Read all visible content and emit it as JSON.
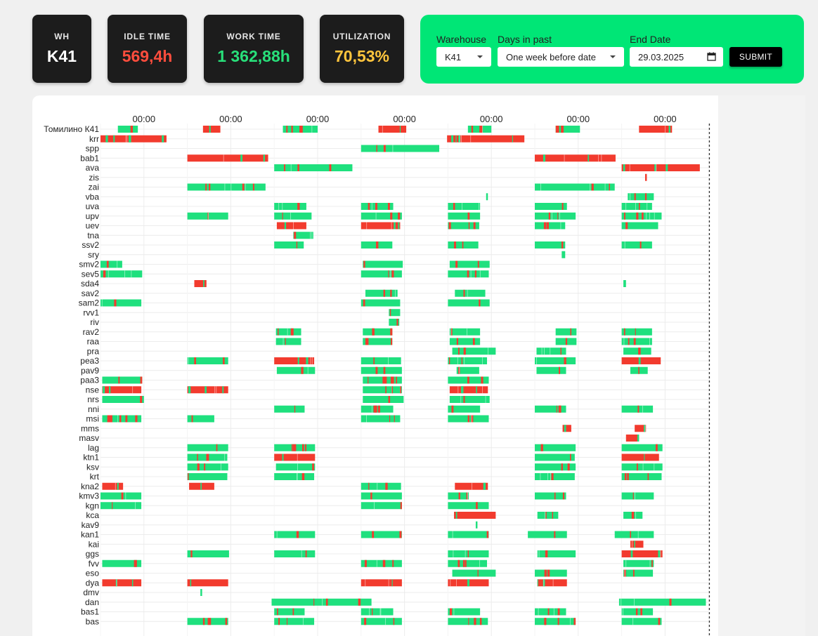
{
  "stats": {
    "wh": {
      "label": "WH",
      "value": "K41",
      "color": "#ffffff"
    },
    "idle": {
      "label": "IDLE TIME",
      "value": "569,4h",
      "color": "#ff4d3d"
    },
    "work": {
      "label": "WORK TIME",
      "value": "1 362,88h",
      "color": "#28e07a"
    },
    "util": {
      "label": "UTILIZATION",
      "value": "70,53%",
      "color": "#ffc53d"
    }
  },
  "filters": {
    "warehouse_label": "Warehouse",
    "warehouse_value": "K41",
    "days_label": "Days in past",
    "days_value": "One week before date",
    "end_date_label": "End Date",
    "end_date_value": "29.03.2025",
    "submit_label": "SUBMIT",
    "panel_color": "#00e676"
  },
  "chart_data": {
    "type": "gantt",
    "x_tick_labels": [
      "00:00",
      "00:00",
      "00:00",
      "00:00",
      "00:00",
      "00:00",
      "00:00"
    ],
    "x_ticks_day": [
      0.5,
      1.5,
      2.5,
      3.5,
      4.5,
      5.5,
      6.5
    ],
    "x_range_days": [
      0,
      7
    ],
    "colors": {
      "work": "#1fe07e",
      "idle": "#f23b2e"
    },
    "rows": [
      {
        "name": "Томилино К41",
        "segs": [
          [
            0.2,
            0.43,
            "m"
          ],
          [
            1.18,
            1.38,
            "r"
          ],
          [
            2.1,
            2.5,
            "m"
          ],
          [
            3.2,
            3.52,
            "r"
          ],
          [
            4.23,
            4.5,
            "m"
          ],
          [
            5.24,
            5.52,
            "m"
          ],
          [
            6.2,
            6.58,
            "r"
          ]
        ]
      },
      {
        "name": "krr",
        "segs": [
          [
            0.0,
            0.76,
            "r"
          ],
          [
            3.99,
            4.88,
            "r"
          ]
        ]
      },
      {
        "name": "spp",
        "segs": [
          [
            3.0,
            3.9,
            "g"
          ]
        ]
      },
      {
        "name": "bab1",
        "segs": [
          [
            1.0,
            1.93,
            "r"
          ],
          [
            5.0,
            5.93,
            "r"
          ]
        ]
      },
      {
        "name": "ava",
        "segs": [
          [
            2.0,
            2.9,
            "g"
          ],
          [
            6.0,
            6.9,
            "r"
          ]
        ]
      },
      {
        "name": "zis",
        "segs": [
          [
            6.27,
            6.29,
            "r"
          ]
        ]
      },
      {
        "name": "zai",
        "segs": [
          [
            1.0,
            1.9,
            "g"
          ],
          [
            5.0,
            5.92,
            "g"
          ]
        ]
      },
      {
        "name": "vba",
        "segs": [
          [
            4.44,
            4.46,
            "g"
          ],
          [
            6.07,
            6.37,
            "g"
          ]
        ]
      },
      {
        "name": "uva",
        "segs": [
          [
            2.0,
            2.37,
            "g"
          ],
          [
            3.0,
            3.37,
            "g"
          ],
          [
            4.0,
            4.37,
            "g"
          ],
          [
            5.0,
            5.37,
            "g"
          ],
          [
            6.0,
            6.35,
            "g"
          ]
        ]
      },
      {
        "name": "upv",
        "segs": [
          [
            1.0,
            1.47,
            "g"
          ],
          [
            2.0,
            2.43,
            "g"
          ],
          [
            3.0,
            3.47,
            "g"
          ],
          [
            4.0,
            4.37,
            "g"
          ],
          [
            5.0,
            5.47,
            "g"
          ],
          [
            6.0,
            6.46,
            "g"
          ]
        ]
      },
      {
        "name": "uev",
        "segs": [
          [
            2.03,
            2.37,
            "r"
          ],
          [
            3.0,
            3.45,
            "r"
          ],
          [
            4.0,
            4.36,
            "g"
          ],
          [
            5.0,
            5.35,
            "g"
          ],
          [
            6.0,
            6.42,
            "g"
          ]
        ]
      },
      {
        "name": "tna",
        "segs": [
          [
            2.22,
            2.45,
            "g"
          ]
        ]
      },
      {
        "name": "ssv2",
        "segs": [
          [
            2.0,
            2.34,
            "g"
          ],
          [
            3.0,
            3.36,
            "g"
          ],
          [
            4.0,
            4.35,
            "g"
          ],
          [
            5.0,
            5.35,
            "g"
          ],
          [
            6.0,
            6.35,
            "g"
          ]
        ]
      },
      {
        "name": "sry",
        "segs": [
          [
            5.31,
            5.35,
            "g"
          ]
        ]
      },
      {
        "name": "smv2",
        "segs": [
          [
            0.0,
            0.25,
            "g"
          ],
          [
            3.02,
            3.48,
            "g"
          ],
          [
            4.02,
            4.48,
            "g"
          ]
        ]
      },
      {
        "name": "sev5",
        "segs": [
          [
            0.0,
            0.48,
            "g"
          ],
          [
            3.0,
            3.47,
            "g"
          ],
          [
            4.0,
            4.47,
            "g"
          ]
        ]
      },
      {
        "name": "sda4",
        "segs": [
          [
            1.08,
            1.22,
            "r"
          ],
          [
            6.02,
            6.05,
            "g"
          ]
        ]
      },
      {
        "name": "sav2",
        "segs": [
          [
            3.05,
            3.42,
            "g"
          ],
          [
            4.08,
            4.43,
            "g"
          ]
        ]
      },
      {
        "name": "sam2",
        "segs": [
          [
            0.0,
            0.47,
            "g"
          ],
          [
            3.0,
            3.45,
            "g"
          ],
          [
            4.0,
            4.48,
            "g"
          ]
        ]
      },
      {
        "name": "rvv1",
        "segs": [
          [
            3.32,
            3.45,
            "g"
          ]
        ]
      },
      {
        "name": "riv",
        "segs": [
          [
            3.32,
            3.44,
            "g"
          ]
        ]
      },
      {
        "name": "rav2",
        "segs": [
          [
            2.02,
            2.31,
            "m"
          ],
          [
            3.02,
            3.36,
            "m"
          ],
          [
            4.02,
            4.37,
            "g"
          ],
          [
            5.24,
            5.48,
            "g"
          ],
          [
            6.0,
            6.35,
            "g"
          ]
        ]
      },
      {
        "name": "raa",
        "segs": [
          [
            2.02,
            2.31,
            "m"
          ],
          [
            3.02,
            3.36,
            "m"
          ],
          [
            4.02,
            4.37,
            "g"
          ],
          [
            5.24,
            5.48,
            "g"
          ],
          [
            6.0,
            6.35,
            "g"
          ]
        ]
      },
      {
        "name": "pra",
        "segs": [
          [
            4.05,
            4.55,
            "g"
          ],
          [
            5.02,
            5.36,
            "g"
          ],
          [
            6.02,
            6.34,
            "g"
          ]
        ]
      },
      {
        "name": "pea3",
        "segs": [
          [
            1.0,
            1.47,
            "g"
          ],
          [
            2.0,
            2.46,
            "r"
          ],
          [
            3.0,
            3.46,
            "g"
          ],
          [
            4.0,
            4.45,
            "g"
          ],
          [
            5.0,
            5.47,
            "g"
          ],
          [
            6.0,
            6.45,
            "r"
          ]
        ]
      },
      {
        "name": "pav9",
        "segs": [
          [
            2.03,
            2.47,
            "g"
          ],
          [
            3.0,
            3.47,
            "g"
          ],
          [
            4.1,
            4.36,
            "g"
          ],
          [
            5.02,
            5.36,
            "g"
          ],
          [
            6.1,
            6.3,
            "g"
          ]
        ]
      },
      {
        "name": "paa3",
        "segs": [
          [
            0.02,
            0.48,
            "m"
          ],
          [
            3.02,
            3.47,
            "m"
          ],
          [
            4.0,
            4.47,
            "g"
          ]
        ]
      },
      {
        "name": "nse",
        "segs": [
          [
            0.02,
            0.47,
            "r"
          ],
          [
            1.0,
            1.47,
            "r"
          ],
          [
            3.02,
            3.47,
            "m"
          ],
          [
            4.02,
            4.46,
            "r"
          ]
        ]
      },
      {
        "name": "nrs",
        "segs": [
          [
            0.02,
            0.5,
            "g"
          ],
          [
            3.02,
            3.49,
            "g"
          ],
          [
            4.02,
            4.48,
            "g"
          ]
        ]
      },
      {
        "name": "nni",
        "segs": [
          [
            2.0,
            2.35,
            "g"
          ],
          [
            3.0,
            3.37,
            "g"
          ],
          [
            4.0,
            4.37,
            "g"
          ],
          [
            5.0,
            5.36,
            "g"
          ],
          [
            6.0,
            6.36,
            "g"
          ]
        ]
      },
      {
        "name": "msi",
        "segs": [
          [
            0.02,
            0.47,
            "m"
          ],
          [
            1.0,
            1.31,
            "m"
          ],
          [
            3.0,
            3.45,
            "g"
          ],
          [
            4.0,
            4.47,
            "g"
          ]
        ]
      },
      {
        "name": "mms",
        "segs": [
          [
            5.32,
            5.42,
            "r"
          ],
          [
            6.15,
            6.28,
            "r"
          ]
        ]
      },
      {
        "name": "masv",
        "segs": [
          [
            6.05,
            6.2,
            "r"
          ]
        ]
      },
      {
        "name": "lag",
        "segs": [
          [
            1.0,
            1.47,
            "g"
          ],
          [
            2.0,
            2.47,
            "m"
          ],
          [
            5.0,
            5.47,
            "g"
          ],
          [
            6.0,
            6.47,
            "g"
          ]
        ]
      },
      {
        "name": "ktn1",
        "segs": [
          [
            1.0,
            1.46,
            "g"
          ],
          [
            2.0,
            2.47,
            "r"
          ],
          [
            5.0,
            5.46,
            "g"
          ],
          [
            6.0,
            6.43,
            "r"
          ]
        ]
      },
      {
        "name": "ksv",
        "segs": [
          [
            1.0,
            1.47,
            "g"
          ],
          [
            2.02,
            2.47,
            "g"
          ],
          [
            5.0,
            5.47,
            "g"
          ],
          [
            6.0,
            6.47,
            "g"
          ]
        ]
      },
      {
        "name": "krt",
        "segs": [
          [
            1.0,
            1.46,
            "g"
          ],
          [
            2.0,
            2.46,
            "g"
          ],
          [
            5.0,
            5.46,
            "g"
          ],
          [
            6.0,
            6.46,
            "g"
          ]
        ]
      },
      {
        "name": "kna2",
        "segs": [
          [
            0.02,
            0.26,
            "r"
          ],
          [
            1.02,
            1.31,
            "r"
          ],
          [
            3.0,
            3.46,
            "g"
          ],
          [
            4.08,
            4.46,
            "r"
          ]
        ]
      },
      {
        "name": "kmv3",
        "segs": [
          [
            0.0,
            0.47,
            "g"
          ],
          [
            3.0,
            3.47,
            "g"
          ],
          [
            4.0,
            4.24,
            "g"
          ],
          [
            5.0,
            5.36,
            "g"
          ],
          [
            6.0,
            6.37,
            "g"
          ]
        ]
      },
      {
        "name": "kgn",
        "segs": [
          [
            0.0,
            0.47,
            "g"
          ],
          [
            3.0,
            3.47,
            "g"
          ],
          [
            4.0,
            4.47,
            "g"
          ]
        ]
      },
      {
        "name": "kca",
        "segs": [
          [
            4.07,
            4.55,
            "r"
          ],
          [
            5.03,
            5.27,
            "g"
          ],
          [
            6.02,
            6.24,
            "g"
          ]
        ]
      },
      {
        "name": "kav9",
        "segs": [
          [
            4.32,
            4.34,
            "g"
          ]
        ]
      },
      {
        "name": "kan1",
        "segs": [
          [
            2.0,
            2.47,
            "g"
          ],
          [
            3.0,
            3.47,
            "g"
          ],
          [
            4.0,
            4.47,
            "g"
          ],
          [
            4.92,
            5.37,
            "g"
          ],
          [
            5.92,
            6.37,
            "g"
          ]
        ]
      },
      {
        "name": "kai",
        "segs": [
          [
            6.1,
            6.25,
            "r"
          ]
        ]
      },
      {
        "name": "ggs",
        "segs": [
          [
            1.0,
            1.48,
            "g"
          ],
          [
            2.0,
            2.47,
            "g"
          ],
          [
            4.0,
            4.47,
            "g"
          ],
          [
            5.03,
            5.47,
            "g"
          ],
          [
            6.0,
            6.47,
            "r"
          ]
        ]
      },
      {
        "name": "fvv",
        "segs": [
          [
            0.02,
            0.47,
            "m"
          ],
          [
            3.0,
            3.47,
            "m"
          ],
          [
            4.0,
            4.45,
            "m"
          ],
          [
            6.02,
            6.37,
            "g"
          ]
        ]
      },
      {
        "name": "eso",
        "segs": [
          [
            4.05,
            4.55,
            "g"
          ],
          [
            5.0,
            5.37,
            "g"
          ],
          [
            6.02,
            6.36,
            "g"
          ]
        ]
      },
      {
        "name": "dya",
        "segs": [
          [
            0.02,
            0.47,
            "r"
          ],
          [
            1.0,
            1.47,
            "r"
          ],
          [
            3.0,
            3.47,
            "r"
          ],
          [
            4.0,
            4.47,
            "r"
          ],
          [
            5.03,
            5.37,
            "r"
          ]
        ]
      },
      {
        "name": "dmv",
        "segs": [
          [
            1.15,
            1.17,
            "g"
          ]
        ]
      },
      {
        "name": "dan",
        "segs": [
          [
            1.97,
            3.12,
            "g"
          ],
          [
            5.97,
            6.97,
            "g"
          ]
        ]
      },
      {
        "name": "bas1",
        "segs": [
          [
            2.0,
            2.35,
            "g"
          ],
          [
            3.0,
            3.37,
            "g"
          ],
          [
            4.0,
            4.37,
            "g"
          ],
          [
            5.0,
            5.36,
            "g"
          ],
          [
            6.0,
            6.36,
            "g"
          ]
        ]
      },
      {
        "name": "bas",
        "segs": [
          [
            1.0,
            1.47,
            "g"
          ],
          [
            2.0,
            2.46,
            "g"
          ],
          [
            3.0,
            3.47,
            "g"
          ],
          [
            4.0,
            4.46,
            "g"
          ],
          [
            5.0,
            5.47,
            "g"
          ],
          [
            6.0,
            6.46,
            "g"
          ]
        ]
      }
    ]
  }
}
